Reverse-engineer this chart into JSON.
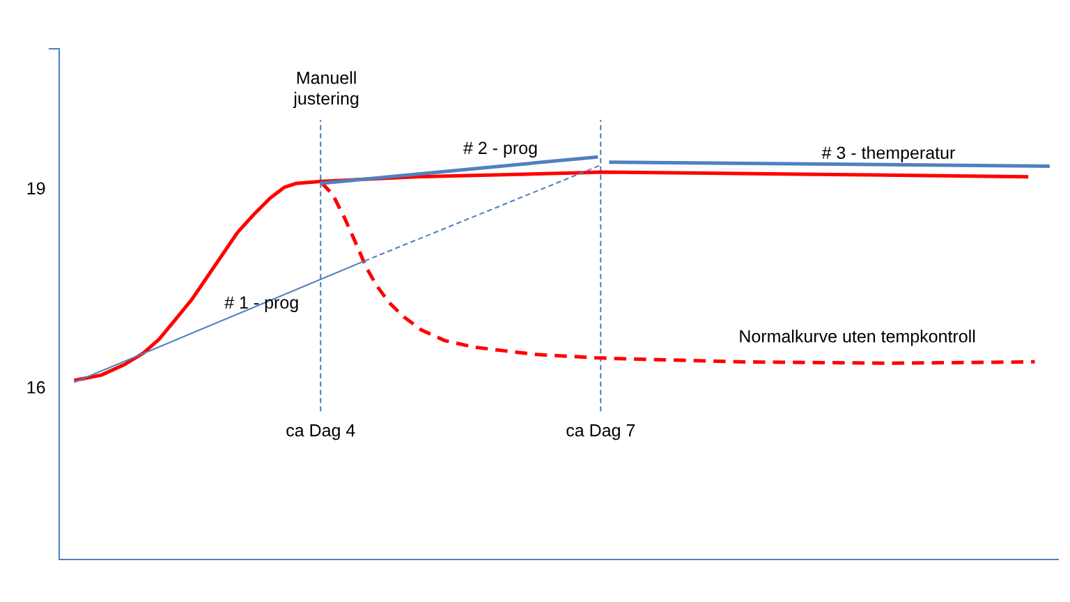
{
  "chart_data": {
    "type": "line",
    "xlim": [
      1.2,
      11.9
    ],
    "ylim": [
      13.4,
      21.1
    ],
    "yticks": [
      16,
      19,
      {
        "value": 21.1,
        "label": null
      }
    ],
    "tick_labels": "y",
    "series": [
      {
        "color": "#ff0000",
        "line_style": "solid",
        "x": [
          1.36,
          1.65,
          1.9,
          2.1,
          2.27,
          2.44,
          2.62,
          2.79,
          2.94,
          3.11,
          3.29,
          3.46,
          3.61,
          3.74,
          3.99,
          5.03,
          6.77,
          7.0,
          9.13,
          11.58
        ],
        "values": [
          16.1,
          16.18,
          16.34,
          16.51,
          16.72,
          17.01,
          17.32,
          17.67,
          17.98,
          18.33,
          18.61,
          18.85,
          19.01,
          19.07,
          19.1,
          19.17,
          19.23,
          19.24,
          19.21,
          19.17
        ]
      },
      {
        "name": "Normalkurve uten tempkontroll",
        "color": "#ff0000",
        "line_style": "dashed",
        "x": [
          4.01,
          4.13,
          4.26,
          4.38,
          4.49,
          4.6,
          4.73,
          4.88,
          5.08,
          5.33,
          5.65,
          5.95,
          6.32,
          6.95,
          7.42,
          8.49,
          10.08,
          11.65
        ],
        "values": [
          19.08,
          18.9,
          18.54,
          18.16,
          17.8,
          17.53,
          17.28,
          17.07,
          16.86,
          16.7,
          16.6,
          16.55,
          16.49,
          16.44,
          16.42,
          16.38,
          16.36,
          16.38
        ]
      },
      {
        "name": "# 1 - prog",
        "color": "#4f81bd",
        "line_style": "solid",
        "x": [
          1.36,
          4.47
        ],
        "values": [
          16.07,
          17.9
        ]
      },
      {
        "color": "#4f81bd",
        "line_style": "dashed",
        "x": [
          4.47,
          6.99
        ],
        "values": [
          17.9,
          19.34
        ]
      },
      {
        "name": "# 2 - prog",
        "color": "#4f81bd",
        "line_style": "solid",
        "x": [
          3.99,
          6.97
        ],
        "values": [
          19.07,
          19.47
        ]
      },
      {
        "name": "# 3 - themperatur",
        "color": "#4f81bd",
        "line_style": "solid",
        "x": [
          7.09,
          11.81
        ],
        "values": [
          19.39,
          19.33
        ]
      }
    ],
    "ref_lines": [
      {
        "axis": "x",
        "value": 4,
        "label": "ca Dag 4",
        "color": "#4f81bd",
        "line_style": "dashed"
      },
      {
        "axis": "x",
        "value": 7,
        "label": "ca Dag 7",
        "color": "#4f81bd",
        "line_style": "dashed"
      }
    ],
    "annotations": [
      {
        "text": "Manuell\njustering",
        "x": 4,
        "y": 20.06
      }
    ]
  }
}
